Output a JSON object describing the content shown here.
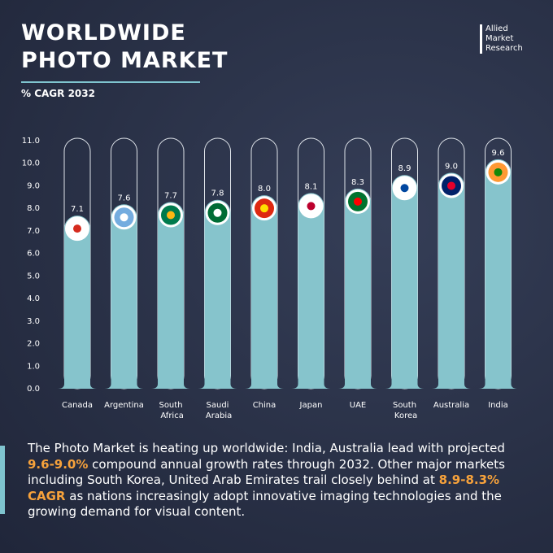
{
  "header": {
    "title": "WORLDWIDE PHOTO MARKET",
    "subtitle": "% CAGR 2032",
    "logo": "Allied Market Research"
  },
  "chart_data": {
    "type": "bar",
    "categories": [
      "Canada",
      "Argentina",
      "South Africa",
      "Saudi Arabia",
      "China",
      "Japan",
      "UAE",
      "South Korea",
      "Australia",
      "India"
    ],
    "values": [
      7.1,
      7.6,
      7.7,
      7.8,
      8.0,
      8.1,
      8.3,
      8.9,
      9.0,
      9.6
    ],
    "value_labels": [
      "7.1",
      "7.6",
      "7.7",
      "7.8",
      "8.0",
      "8.1",
      "8.3",
      "8.9",
      "9.0",
      "9.6"
    ],
    "color": "#86c4cc",
    "ylim": [
      0,
      11
    ],
    "yticks": [
      {
        "value": 0,
        "label": "0.0"
      },
      {
        "value": 1,
        "label": "1.0"
      },
      {
        "value": 2,
        "label": "2.0"
      },
      {
        "value": 3,
        "label": "3.0"
      },
      {
        "value": 4,
        "label": "4.0"
      },
      {
        "value": 5,
        "label": "5.0"
      },
      {
        "value": 6,
        "label": "6.0"
      },
      {
        "value": 7,
        "label": "7.0"
      },
      {
        "value": 8,
        "label": "8.0"
      },
      {
        "value": 9,
        "label": "9.0"
      },
      {
        "value": 10,
        "label": "10.0"
      },
      {
        "value": 11,
        "label": "11.0"
      }
    ]
  },
  "description": [
    "The Photo Market is heating up worldwide: India, Australia lead with projected ",
    "9.6-9.0%",
    " compound annual growth rates through 2032. Other major markets including South Korea, United Arab Emirates trail closely behind at ",
    "8.9-8.3% CAGR",
    " as nations increasingly adopt innovative imaging technologies and the growing demand for visual content."
  ]
}
